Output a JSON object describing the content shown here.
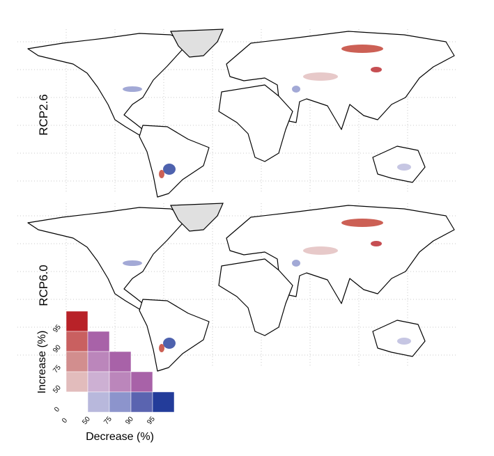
{
  "panels": [
    {
      "label": "RCP2.6"
    },
    {
      "label": "RCP6.0"
    }
  ],
  "legend": {
    "y_label": "Increase (%)",
    "x_label": "Decrease (%)",
    "y_ticks": [
      0,
      50,
      75,
      90,
      95
    ],
    "x_ticks": [
      0,
      50,
      75,
      90,
      95
    ],
    "cells": [
      [
        "#b82228"
      ],
      [
        "#c96060",
        "#a862a8"
      ],
      [
        "#d28e8e",
        "#bb86bb",
        "#a862a8"
      ],
      [
        "#e2bcbc",
        "#cdb0d3",
        "#bb86bb",
        "#a862a8"
      ],
      [
        "#ffffff",
        "#b8b8dc",
        "#8c94cc",
        "#5a64b0",
        "#233c9a"
      ]
    ]
  }
}
